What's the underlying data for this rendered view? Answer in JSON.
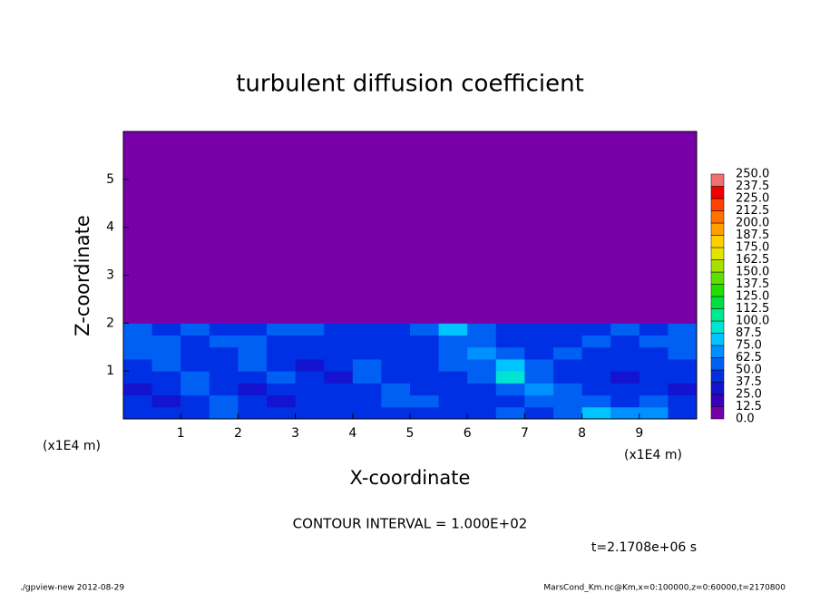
{
  "chart_data": {
    "type": "heatmap",
    "title": "turbulent diffusion coefficient",
    "x_label": "X-coordinate",
    "y_label": "Z-coordinate",
    "x_unit": "(x1E4 m)",
    "y_unit": "(x1E4 m)",
    "contour_note": "CONTOUR INTERVAL = 1.000E+02",
    "time_label": "t=2.1708e+06 s",
    "footer_left": "./gpview-new  2012-08-29",
    "footer_right": "MarsCond_Km.nc@Km,x=0:100000,z=0:60000,t=2170800",
    "xlim": [
      0,
      10
    ],
    "ylim": [
      0,
      6
    ],
    "xticks": [
      1,
      2,
      3,
      4,
      5,
      6,
      7,
      8,
      9
    ],
    "yticks": [
      1,
      2,
      3,
      4,
      5
    ],
    "xbins": [
      0,
      0.5,
      1,
      1.5,
      2,
      2.5,
      3,
      3.5,
      4,
      4.5,
      5,
      5.5,
      6,
      6.5,
      7,
      7.5,
      8,
      8.5,
      9,
      9.5,
      10
    ],
    "zbins": [
      0,
      0.25,
      0.5,
      0.75,
      1,
      1.25,
      1.5,
      1.75,
      2,
      6
    ],
    "values": [
      [
        45,
        40,
        40,
        55,
        45,
        40,
        45,
        40,
        40,
        45,
        45,
        40,
        45,
        50,
        40,
        60,
        75,
        70,
        65,
        45
      ],
      [
        40,
        35,
        45,
        60,
        40,
        35,
        40,
        45,
        40,
        50,
        55,
        45,
        40,
        40,
        50,
        55,
        60,
        45,
        55,
        40
      ],
      [
        35,
        40,
        55,
        45,
        35,
        40,
        45,
        40,
        45,
        60,
        45,
        40,
        40,
        50,
        70,
        55,
        40,
        45,
        40,
        35
      ],
      [
        40,
        45,
        60,
        40,
        40,
        55,
        40,
        35,
        50,
        45,
        40,
        45,
        50,
        95,
        60,
        45,
        40,
        35,
        40,
        40
      ],
      [
        45,
        55,
        45,
        40,
        55,
        45,
        35,
        40,
        55,
        40,
        40,
        50,
        60,
        80,
        50,
        40,
        45,
        40,
        40,
        45
      ],
      [
        50,
        60,
        40,
        45,
        60,
        40,
        40,
        45,
        45,
        40,
        45,
        55,
        70,
        55,
        45,
        50,
        40,
        45,
        45,
        50
      ],
      [
        55,
        50,
        45,
        50,
        55,
        45,
        40,
        40,
        40,
        40,
        45,
        60,
        55,
        45,
        40,
        45,
        50,
        45,
        50,
        55
      ],
      [
        50,
        45,
        50,
        45,
        45,
        60,
        55,
        45,
        40,
        45,
        50,
        80,
        60,
        45,
        40,
        45,
        45,
        50,
        45,
        50
      ],
      [
        0,
        0,
        0,
        0,
        0,
        0,
        0,
        0,
        0,
        0,
        0,
        0,
        0,
        0,
        0,
        0,
        0,
        0,
        0,
        0
      ]
    ],
    "levels": [
      {
        "value": 0,
        "label": "0.0"
      },
      12.5,
      {
        "value": 25,
        "label": "25.0"
      },
      37.5,
      {
        "value": 50,
        "label": "50.0"
      },
      62.5,
      {
        "value": 75,
        "label": "75.0"
      },
      87.5,
      {
        "value": 100,
        "label": "100.0"
      },
      112.5,
      {
        "value": 125,
        "label": "125.0"
      },
      137.5,
      {
        "value": 150,
        "label": "150.0"
      },
      162.5,
      {
        "value": 175,
        "label": "175.0"
      },
      187.5,
      {
        "value": 200,
        "label": "200.0"
      },
      212.5,
      {
        "value": 225,
        "label": "225.0"
      },
      237.5,
      {
        "value": 250,
        "label": "250.0"
      }
    ],
    "colors": [
      "#7800a8",
      "#3a00c0",
      "#1414d0",
      "#0030e4",
      "#0060f4",
      "#0090ff",
      "#00c4ff",
      "#00e4d4",
      "#00e890",
      "#00e040",
      "#20e000",
      "#60e000",
      "#a8e000",
      "#e4e400",
      "#ffd000",
      "#ffa000",
      "#ff7000",
      "#ff4000",
      "#f00000",
      "#f07070"
    ]
  }
}
